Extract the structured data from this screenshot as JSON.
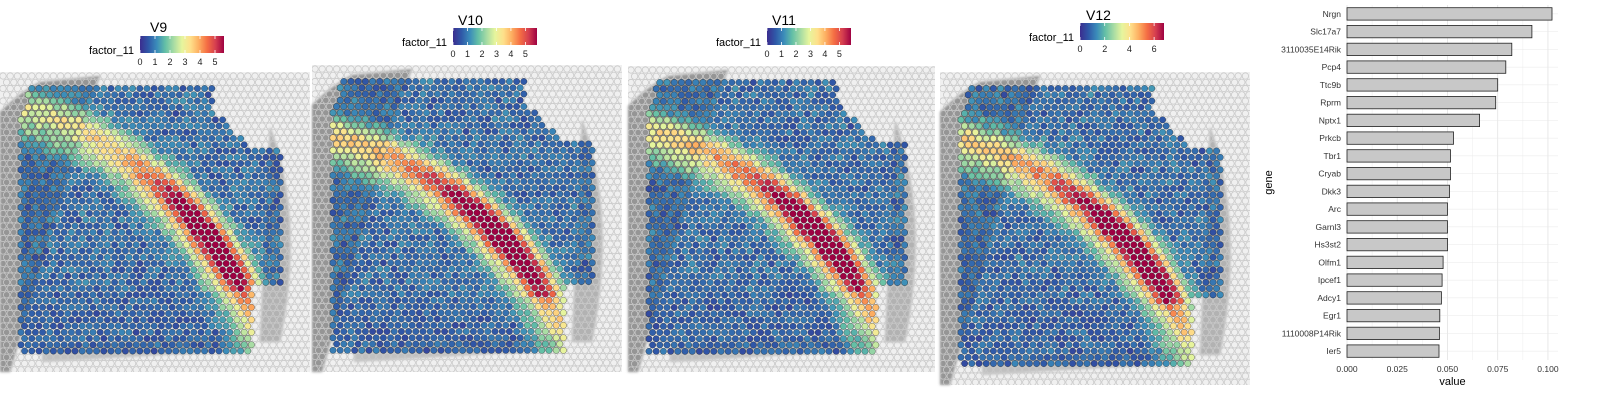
{
  "panels": [
    {
      "title": "V9",
      "legend_label": "factor_11",
      "ticks": [
        "0",
        "1",
        "2",
        "3",
        "4",
        "5"
      ],
      "vmax": 5.6
    },
    {
      "title": "V10",
      "legend_label": "factor_11",
      "ticks": [
        "0",
        "1",
        "2",
        "3",
        "4",
        "5"
      ],
      "vmax": 5.8
    },
    {
      "title": "V11",
      "legend_label": "factor_11",
      "ticks": [
        "0",
        "1",
        "2",
        "3",
        "4",
        "5"
      ],
      "vmax": 5.8
    },
    {
      "title": "V12",
      "legend_label": "factor_11",
      "ticks": [
        "0",
        "2",
        "4",
        "6"
      ],
      "vmax": 6.8
    }
  ],
  "colorscale": [
    "#3b2d8f",
    "#2f58a8",
    "#3b8cba",
    "#63bfa6",
    "#a6dba4",
    "#e6f59d",
    "#fee08b",
    "#fdae61",
    "#f46d43",
    "#d53e4f",
    "#9e0142"
  ],
  "chart_data": {
    "type": "bar",
    "orientation": "horizontal",
    "categories": [
      "Nrgn",
      "Slc17a7",
      "3110035E14Rik",
      "Pcp4",
      "Ttc9b",
      "Rprm",
      "Nptx1",
      "Prkcb",
      "Tbr1",
      "Cryab",
      "Dkk3",
      "Arc",
      "Garnl3",
      "Hs3st2",
      "Olfm1",
      "Ipcef1",
      "Adcy1",
      "Egr1",
      "1110008P14Rik",
      "Ier5"
    ],
    "values": [
      0.102,
      0.092,
      0.082,
      0.079,
      0.075,
      0.074,
      0.066,
      0.053,
      0.0515,
      0.0515,
      0.051,
      0.05,
      0.05,
      0.05,
      0.0478,
      0.0473,
      0.047,
      0.0462,
      0.046,
      0.0458
    ],
    "xlabel": "value",
    "ylabel": "gene",
    "xlim": [
      0,
      0.105
    ],
    "xticks": [
      "0.000",
      "0.025",
      "0.050",
      "0.075",
      "0.100"
    ],
    "grid": true,
    "bar_color": "#c8c8c8"
  }
}
